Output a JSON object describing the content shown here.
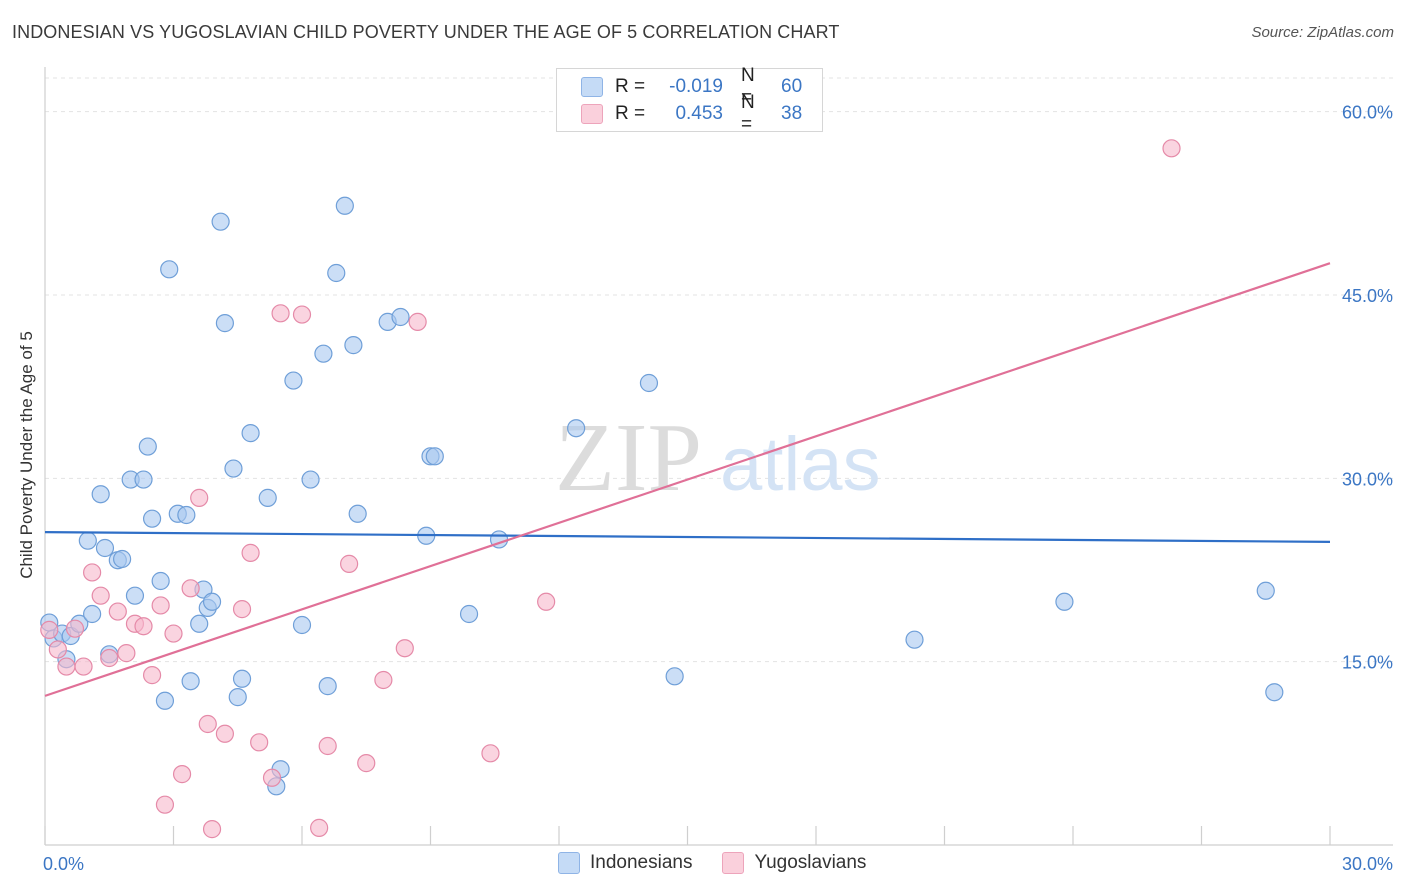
{
  "header": {
    "title": "INDONESIAN VS YUGOSLAVIAN CHILD POVERTY UNDER THE AGE OF 5 CORRELATION CHART",
    "source": "Source: ZipAtlas.com"
  },
  "watermark": {
    "zip": "ZIP",
    "atlas": "atlas"
  },
  "legend": {
    "r_label": "R =",
    "n_label": "N =",
    "rows": [
      {
        "series": "Indonesians",
        "r": "-0.019",
        "n": "60",
        "color": "#a9c8f0"
      },
      {
        "series": "Yugoslavians",
        "r": "0.453",
        "n": "38",
        "color": "#f6b8cb"
      }
    ]
  },
  "colors": {
    "indonesians_fill": "#a9c8f0",
    "indonesians_stroke": "#6f9fd8",
    "indonesians_line": "#2f6fc7",
    "yugoslavians_fill": "#f6b8cb",
    "yugoslavians_stroke": "#e58aa8",
    "yugoslavians_line": "#e07097",
    "tick_label": "#3b76c4"
  },
  "chart_data": {
    "type": "scatter",
    "title": "INDONESIAN VS YUGOSLAVIAN CHILD POVERTY UNDER THE AGE OF 5 CORRELATION CHART",
    "xlabel": "",
    "ylabel": "Child Poverty Under the Age of 5",
    "xlim": [
      0,
      30
    ],
    "ylim": [
      0,
      63
    ],
    "x_tick_labels": [
      {
        "value": 0,
        "label": "0.0%"
      },
      {
        "value": 30,
        "label": "30.0%"
      }
    ],
    "y_tick_labels": [
      {
        "value": 15,
        "label": "15.0%"
      },
      {
        "value": 30,
        "label": "30.0%"
      },
      {
        "value": 45,
        "label": "45.0%"
      },
      {
        "value": 60,
        "label": "60.0%"
      }
    ],
    "grid": true,
    "legend_position": "top-center",
    "series": [
      {
        "name": "Indonesians",
        "trend": {
          "x": [
            0,
            30
          ],
          "y": [
            25.6,
            24.8
          ]
        },
        "points": [
          [
            0.1,
            18.2
          ],
          [
            0.2,
            16.9
          ],
          [
            0.4,
            17.3
          ],
          [
            0.5,
            15.2
          ],
          [
            0.6,
            17.1
          ],
          [
            0.8,
            18.1
          ],
          [
            1.0,
            24.9
          ],
          [
            1.1,
            18.9
          ],
          [
            1.3,
            28.7
          ],
          [
            1.4,
            24.3
          ],
          [
            1.5,
            15.6
          ],
          [
            1.7,
            23.3
          ],
          [
            1.8,
            23.4
          ],
          [
            2.1,
            20.4
          ],
          [
            2.0,
            29.9
          ],
          [
            2.3,
            29.9
          ],
          [
            2.4,
            32.6
          ],
          [
            2.5,
            26.7
          ],
          [
            2.7,
            21.6
          ],
          [
            2.8,
            11.8
          ],
          [
            2.9,
            47.1
          ],
          [
            3.1,
            27.1
          ],
          [
            3.3,
            27.0
          ],
          [
            3.4,
            13.4
          ],
          [
            3.6,
            18.1
          ],
          [
            3.7,
            20.9
          ],
          [
            3.8,
            19.4
          ],
          [
            3.9,
            19.9
          ],
          [
            4.1,
            51.0
          ],
          [
            4.2,
            42.7
          ],
          [
            4.4,
            30.8
          ],
          [
            4.6,
            13.6
          ],
          [
            4.8,
            33.7
          ],
          [
            4.5,
            12.1
          ],
          [
            5.2,
            28.4
          ],
          [
            5.4,
            4.8
          ],
          [
            5.5,
            6.2
          ],
          [
            5.8,
            38.0
          ],
          [
            6.0,
            18.0
          ],
          [
            6.2,
            29.9
          ],
          [
            6.5,
            40.2
          ],
          [
            6.6,
            13.0
          ],
          [
            6.8,
            46.8
          ],
          [
            7.0,
            52.3
          ],
          [
            7.2,
            40.9
          ],
          [
            7.3,
            27.1
          ],
          [
            8.0,
            42.8
          ],
          [
            8.3,
            43.2
          ],
          [
            8.9,
            25.3
          ],
          [
            9.0,
            31.8
          ],
          [
            9.1,
            31.8
          ],
          [
            9.9,
            18.9
          ],
          [
            10.6,
            25.0
          ],
          [
            12.4,
            34.1
          ],
          [
            14.1,
            37.8
          ],
          [
            14.7,
            13.8
          ],
          [
            20.3,
            16.8
          ],
          [
            23.8,
            19.9
          ],
          [
            28.5,
            20.8
          ],
          [
            28.7,
            12.5
          ]
        ]
      },
      {
        "name": "Yugoslavians",
        "trend": {
          "x": [
            0,
            30
          ],
          "y": [
            12.2,
            47.6
          ]
        },
        "points": [
          [
            0.1,
            17.6
          ],
          [
            0.3,
            16.0
          ],
          [
            0.5,
            14.6
          ],
          [
            0.7,
            17.7
          ],
          [
            0.9,
            14.6
          ],
          [
            1.1,
            22.3
          ],
          [
            1.3,
            20.4
          ],
          [
            1.5,
            15.3
          ],
          [
            1.7,
            19.1
          ],
          [
            1.9,
            15.7
          ],
          [
            2.1,
            18.1
          ],
          [
            2.3,
            17.9
          ],
          [
            2.5,
            13.9
          ],
          [
            2.7,
            19.6
          ],
          [
            2.8,
            3.3
          ],
          [
            3.0,
            17.3
          ],
          [
            3.2,
            5.8
          ],
          [
            3.4,
            21.0
          ],
          [
            3.6,
            28.4
          ],
          [
            3.8,
            9.9
          ],
          [
            3.9,
            1.3
          ],
          [
            4.2,
            9.1
          ],
          [
            4.6,
            19.3
          ],
          [
            4.8,
            23.9
          ],
          [
            5.0,
            8.4
          ],
          [
            5.3,
            5.5
          ],
          [
            5.5,
            43.5
          ],
          [
            6.0,
            43.4
          ],
          [
            6.4,
            1.4
          ],
          [
            6.6,
            8.1
          ],
          [
            7.1,
            23.0
          ],
          [
            7.5,
            6.7
          ],
          [
            7.9,
            13.5
          ],
          [
            8.4,
            16.1
          ],
          [
            8.7,
            42.8
          ],
          [
            10.4,
            7.5
          ],
          [
            11.7,
            19.9
          ],
          [
            26.3,
            57.0
          ]
        ]
      }
    ]
  },
  "bottom_legend": [
    {
      "name": "Indonesians",
      "color": "#a9c8f0"
    },
    {
      "name": "Yugoslavians",
      "color": "#f6b8cb"
    }
  ]
}
